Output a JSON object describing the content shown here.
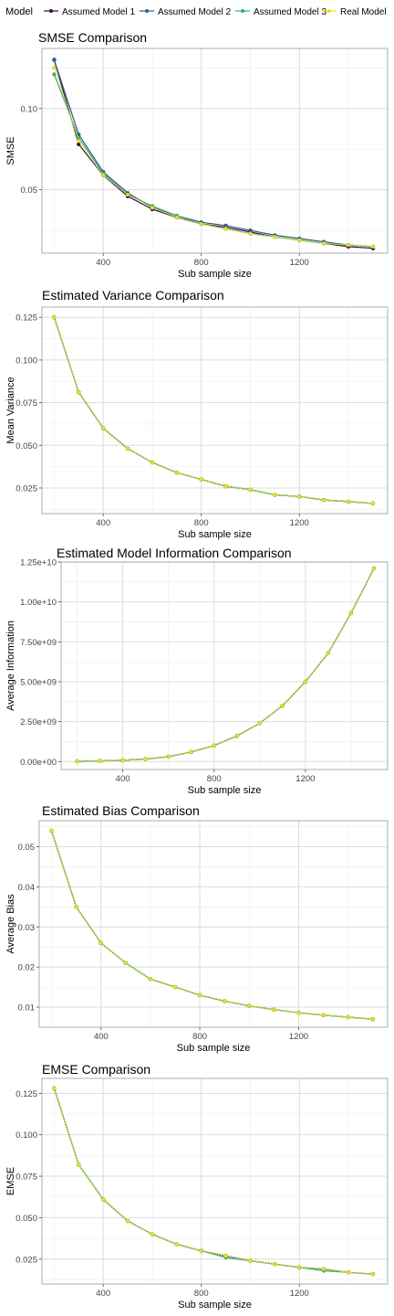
{
  "legend": {
    "title": "Model",
    "items": [
      {
        "label": "Assumed Model 1",
        "color": "#3b0a45"
      },
      {
        "label": "Assumed Model 2",
        "color": "#2e5c8a"
      },
      {
        "label": "Assumed Model 3",
        "color": "#2db37a"
      },
      {
        "label": "Real Model",
        "color": "#f2e21a"
      }
    ]
  },
  "chart_data": [
    {
      "type": "line",
      "title": "SMSE Comparison",
      "xlabel": "Sub sample size",
      "ylabel": "SMSE",
      "xlim": [
        150,
        1560
      ],
      "ylim": [
        0.011,
        0.137
      ],
      "xticks": [
        400,
        800,
        1200
      ],
      "yticks": [
        0.05,
        0.1
      ],
      "ytick_labels": [
        "0.05",
        "0.10"
      ],
      "x": [
        200,
        300,
        400,
        500,
        600,
        700,
        800,
        900,
        1000,
        1100,
        1200,
        1300,
        1400,
        1500
      ],
      "series": [
        {
          "name": "Assumed Model 1",
          "values": [
            0.13,
            0.078,
            0.059,
            0.046,
            0.038,
            0.033,
            0.029,
            0.027,
            0.024,
            0.021,
            0.019,
            0.017,
            0.015,
            0.014
          ]
        },
        {
          "name": "Assumed Model 2",
          "values": [
            0.13,
            0.084,
            0.061,
            0.048,
            0.039,
            0.034,
            0.03,
            0.028,
            0.025,
            0.022,
            0.02,
            0.018,
            0.016,
            0.015
          ]
        },
        {
          "name": "Assumed Model 3",
          "values": [
            0.121,
            0.082,
            0.06,
            0.047,
            0.04,
            0.034,
            0.029,
            0.026,
            0.023,
            0.021,
            0.019,
            0.017,
            0.016,
            0.015
          ]
        },
        {
          "name": "Real Model",
          "values": [
            0.125,
            0.08,
            0.059,
            0.047,
            0.039,
            0.033,
            0.029,
            0.026,
            0.023,
            0.021,
            0.019,
            0.017,
            0.016,
            0.015
          ]
        }
      ]
    },
    {
      "type": "line",
      "title": "Estimated Variance Comparison",
      "xlabel": "Sub sample size",
      "ylabel": "Mean Variance",
      "xlim": [
        150,
        1560
      ],
      "ylim": [
        0.01,
        0.131
      ],
      "xticks": [
        400,
        800,
        1200
      ],
      "yticks": [
        0.025,
        0.05,
        0.075,
        0.1,
        0.125
      ],
      "ytick_labels": [
        "0.025",
        "0.050",
        "0.075",
        "0.100",
        "0.125"
      ],
      "x": [
        200,
        300,
        400,
        500,
        600,
        700,
        800,
        900,
        1000,
        1100,
        1200,
        1300,
        1400,
        1500
      ],
      "series": [
        {
          "name": "Assumed Model 1",
          "values": [
            0.125,
            0.081,
            0.06,
            0.048,
            0.04,
            0.034,
            0.03,
            0.026,
            0.024,
            0.021,
            0.02,
            0.018,
            0.017,
            0.016
          ]
        },
        {
          "name": "Assumed Model 2",
          "values": [
            0.125,
            0.081,
            0.06,
            0.048,
            0.04,
            0.034,
            0.03,
            0.026,
            0.024,
            0.021,
            0.02,
            0.018,
            0.017,
            0.016
          ]
        },
        {
          "name": "Assumed Model 3",
          "values": [
            0.125,
            0.081,
            0.06,
            0.048,
            0.04,
            0.034,
            0.03,
            0.026,
            0.024,
            0.021,
            0.02,
            0.018,
            0.017,
            0.016
          ]
        },
        {
          "name": "Real Model",
          "values": [
            0.125,
            0.081,
            0.06,
            0.048,
            0.04,
            0.034,
            0.03,
            0.026,
            0.024,
            0.021,
            0.02,
            0.018,
            0.017,
            0.016
          ]
        }
      ]
    },
    {
      "type": "line",
      "title": "Estimated Model Information Comparison",
      "xlabel": "Sub sample size",
      "ylabel": "Average Information",
      "xlim": [
        130,
        1560
      ],
      "ylim": [
        -500000000,
        12500000000
      ],
      "xticks": [
        400,
        800,
        1200
      ],
      "yticks": [
        0,
        2500000000,
        5000000000,
        7500000000,
        10000000000,
        12500000000
      ],
      "ytick_labels": [
        "0.00e+00",
        "2.50e+09",
        "5.00e+09",
        "7.50e+09",
        "1.00e+10",
        "1.25e+10"
      ],
      "x": [
        200,
        300,
        400,
        500,
        600,
        700,
        800,
        900,
        1000,
        1100,
        1200,
        1300,
        1400,
        1500
      ],
      "series": [
        {
          "name": "Assumed Model 1",
          "values": [
            10000000,
            40000000,
            80000000,
            150000000,
            300000000,
            600000000,
            1000000000,
            1600000000,
            2400000000,
            3500000000,
            5000000000,
            6800000000,
            9300000000,
            12100000000
          ]
        },
        {
          "name": "Assumed Model 2",
          "values": [
            10000000,
            40000000,
            80000000,
            150000000,
            300000000,
            600000000,
            1000000000,
            1600000000,
            2400000000,
            3500000000,
            5000000000,
            6800000000,
            9300000000,
            12100000000
          ]
        },
        {
          "name": "Assumed Model 3",
          "values": [
            10000000,
            40000000,
            80000000,
            150000000,
            300000000,
            600000000,
            1000000000,
            1600000000,
            2400000000,
            3500000000,
            5000000000,
            6800000000,
            9300000000,
            12100000000
          ]
        },
        {
          "name": "Real Model",
          "values": [
            10000000,
            40000000,
            80000000,
            150000000,
            300000000,
            600000000,
            1000000000,
            1600000000,
            2400000000,
            3500000000,
            5000000000,
            6800000000,
            9300000000,
            12100000000
          ]
        }
      ]
    },
    {
      "type": "line",
      "title": "Estimated Bias Comparison",
      "xlabel": "Sub sample size",
      "ylabel": "Average Bias",
      "xlim": [
        150,
        1560
      ],
      "ylim": [
        0.005,
        0.0565
      ],
      "xticks": [
        400,
        800,
        1200
      ],
      "yticks": [
        0.01,
        0.02,
        0.03,
        0.04,
        0.05
      ],
      "ytick_labels": [
        "0.01",
        "0.02",
        "0.03",
        "0.04",
        "0.05"
      ],
      "x": [
        200,
        300,
        400,
        500,
        600,
        700,
        800,
        900,
        1000,
        1100,
        1200,
        1300,
        1400,
        1500
      ],
      "series": [
        {
          "name": "Assumed Model 1",
          "values": [
            0.054,
            0.035,
            0.026,
            0.021,
            0.017,
            0.015,
            0.013,
            0.0115,
            0.0103,
            0.0094,
            0.0086,
            0.008,
            0.0075,
            0.007
          ]
        },
        {
          "name": "Assumed Model 2",
          "values": [
            0.054,
            0.035,
            0.026,
            0.021,
            0.017,
            0.015,
            0.013,
            0.0115,
            0.0103,
            0.0094,
            0.0086,
            0.008,
            0.0075,
            0.007
          ]
        },
        {
          "name": "Assumed Model 3",
          "values": [
            0.054,
            0.035,
            0.026,
            0.021,
            0.017,
            0.015,
            0.013,
            0.0115,
            0.0103,
            0.0094,
            0.0086,
            0.008,
            0.0075,
            0.007
          ]
        },
        {
          "name": "Real Model",
          "values": [
            0.054,
            0.035,
            0.026,
            0.021,
            0.017,
            0.015,
            0.013,
            0.0115,
            0.0103,
            0.0094,
            0.0086,
            0.008,
            0.0075,
            0.007
          ]
        }
      ]
    },
    {
      "type": "line",
      "title": "EMSE Comparison",
      "xlabel": "Sub sample size",
      "ylabel": "EMSE",
      "xlim": [
        150,
        1560
      ],
      "ylim": [
        0.01,
        0.134
      ],
      "xticks": [
        400,
        800,
        1200
      ],
      "yticks": [
        0.025,
        0.05,
        0.075,
        0.1,
        0.125
      ],
      "ytick_labels": [
        "0.025",
        "0.050",
        "0.075",
        "0.100",
        "0.125"
      ],
      "x": [
        200,
        300,
        400,
        500,
        600,
        700,
        800,
        900,
        1000,
        1100,
        1200,
        1300,
        1400,
        1500
      ],
      "series": [
        {
          "name": "Assumed Model 1",
          "values": [
            0.128,
            0.082,
            0.061,
            0.048,
            0.04,
            0.034,
            0.03,
            0.027,
            0.024,
            0.022,
            0.02,
            0.019,
            0.017,
            0.016
          ]
        },
        {
          "name": "Assumed Model 2",
          "values": [
            0.128,
            0.082,
            0.061,
            0.048,
            0.04,
            0.034,
            0.03,
            0.027,
            0.024,
            0.022,
            0.02,
            0.019,
            0.017,
            0.016
          ]
        },
        {
          "name": "Assumed Model 3",
          "values": [
            0.128,
            0.082,
            0.061,
            0.048,
            0.04,
            0.034,
            0.03,
            0.026,
            0.024,
            0.022,
            0.02,
            0.018,
            0.017,
            0.016
          ]
        },
        {
          "name": "Real Model",
          "values": [
            0.128,
            0.082,
            0.061,
            0.048,
            0.04,
            0.034,
            0.03,
            0.027,
            0.024,
            0.022,
            0.02,
            0.019,
            0.017,
            0.016
          ]
        }
      ]
    }
  ]
}
